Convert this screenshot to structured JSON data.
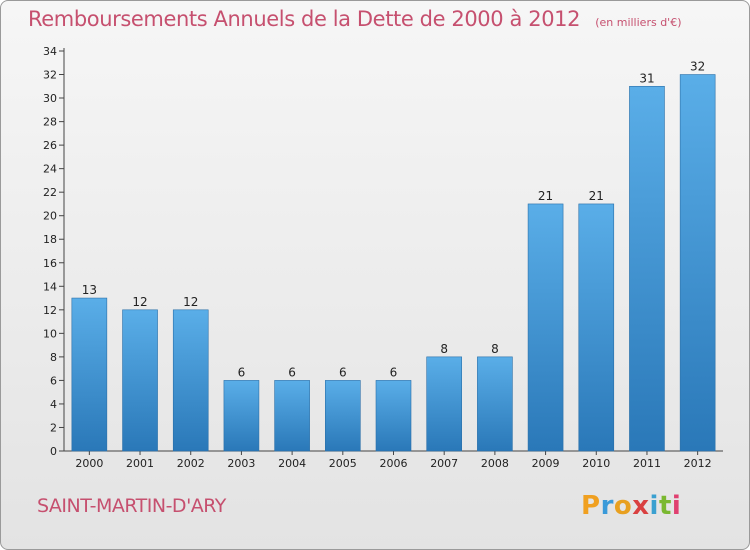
{
  "title": "Remboursements Annuels de la Dette de 2000 à 2012",
  "subtitle": "(en milliers d'€)",
  "place": "SAINT-MARTIN-D'ARY",
  "logo_text": "Proxiti",
  "colors": {
    "title": "#c6506f",
    "bar_top": "#5aaee8",
    "bar_bottom": "#2a78b8",
    "logo_letters": [
      "#f0a020",
      "#3a9ad9",
      "#e8a020",
      "#d94040",
      "#3aa0d0",
      "#7ab830",
      "#e04070"
    ]
  },
  "chart_data": {
    "type": "bar",
    "title": "Remboursements Annuels de la Dette de 2000 à 2012",
    "subtitle": "(en milliers d'€)",
    "categories": [
      "2000",
      "2001",
      "2002",
      "2003",
      "2004",
      "2005",
      "2006",
      "2007",
      "2008",
      "2009",
      "2010",
      "2011",
      "2012"
    ],
    "values": [
      13,
      12,
      12,
      6,
      6,
      6,
      6,
      8,
      8,
      21,
      21,
      31,
      32
    ],
    "ylim": [
      0,
      34
    ],
    "yticks": [
      0,
      2,
      4,
      6,
      8,
      10,
      12,
      14,
      16,
      18,
      20,
      22,
      24,
      26,
      28,
      30,
      32,
      34
    ],
    "grid": false,
    "legend": "none"
  }
}
